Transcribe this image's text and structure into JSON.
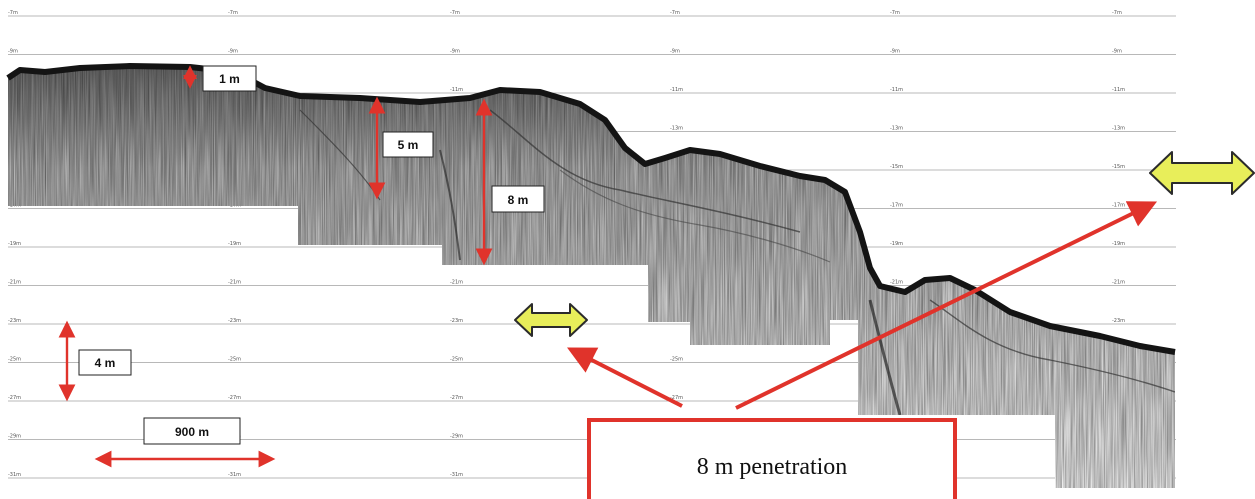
{
  "depth_lines": [
    {
      "depth": 7,
      "label": "-7m"
    },
    {
      "depth": 9,
      "label": "-9m"
    },
    {
      "depth": 11,
      "label": "-11m"
    },
    {
      "depth": 13,
      "label": "-13m"
    },
    {
      "depth": 15,
      "label": "-15m"
    },
    {
      "depth": 17,
      "label": "-17m"
    },
    {
      "depth": 19,
      "label": "-19m"
    },
    {
      "depth": 21,
      "label": "-21m"
    },
    {
      "depth": 23,
      "label": "-23m"
    },
    {
      "depth": 25,
      "label": "-25m"
    },
    {
      "depth": 27,
      "label": "-27m"
    },
    {
      "depth": 29,
      "label": "-29m"
    },
    {
      "depth": 31,
      "label": "-31m"
    }
  ],
  "measurements": {
    "m1": "1 m",
    "m5": "5 m",
    "m8": "8 m",
    "vertical_scale": "4 m",
    "horizontal_scale": "900 m"
  },
  "callout": {
    "text": "8 m penetration"
  },
  "colors": {
    "annotation_red": "#e0332b",
    "double_arrow_fill": "#e8ee5a",
    "double_arrow_stroke": "#2b2b2b",
    "seabed_dark": "#141414",
    "grid_line": "#b8b8b8"
  }
}
